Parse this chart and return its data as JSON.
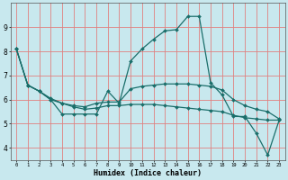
{
  "xlabel": "Humidex (Indice chaleur)",
  "background_color": "#c8e8ee",
  "grid_color": "#e08080",
  "line_color": "#1a6e6a",
  "x": [
    0,
    1,
    2,
    3,
    4,
    5,
    6,
    7,
    8,
    9,
    10,
    11,
    12,
    13,
    14,
    15,
    16,
    17,
    18,
    19,
    20,
    21,
    22,
    23
  ],
  "line1": [
    8.1,
    6.6,
    6.35,
    6.0,
    5.4,
    5.4,
    5.4,
    5.4,
    6.35,
    5.85,
    7.6,
    8.1,
    8.5,
    8.85,
    8.9,
    9.45,
    9.45,
    6.7,
    6.2,
    5.3,
    5.3,
    4.6,
    3.7,
    5.15
  ],
  "line2": [
    8.1,
    6.6,
    6.35,
    6.05,
    5.85,
    5.75,
    5.7,
    5.85,
    5.9,
    5.9,
    6.45,
    6.55,
    6.6,
    6.65,
    6.65,
    6.65,
    6.6,
    6.55,
    6.4,
    6.0,
    5.75,
    5.6,
    5.5,
    5.2
  ],
  "line3": [
    8.1,
    6.6,
    6.35,
    6.0,
    5.85,
    5.7,
    5.6,
    5.65,
    5.75,
    5.75,
    5.8,
    5.8,
    5.8,
    5.75,
    5.7,
    5.65,
    5.6,
    5.55,
    5.5,
    5.35,
    5.25,
    5.2,
    5.15,
    5.15
  ],
  "ylim": [
    3.5,
    10.0
  ],
  "xlim": [
    -0.5,
    23.5
  ],
  "yticks": [
    4,
    5,
    6,
    7,
    8,
    9
  ],
  "xticks": [
    0,
    1,
    2,
    3,
    4,
    5,
    6,
    7,
    8,
    9,
    10,
    11,
    12,
    13,
    14,
    15,
    16,
    17,
    18,
    19,
    20,
    21,
    22,
    23
  ]
}
